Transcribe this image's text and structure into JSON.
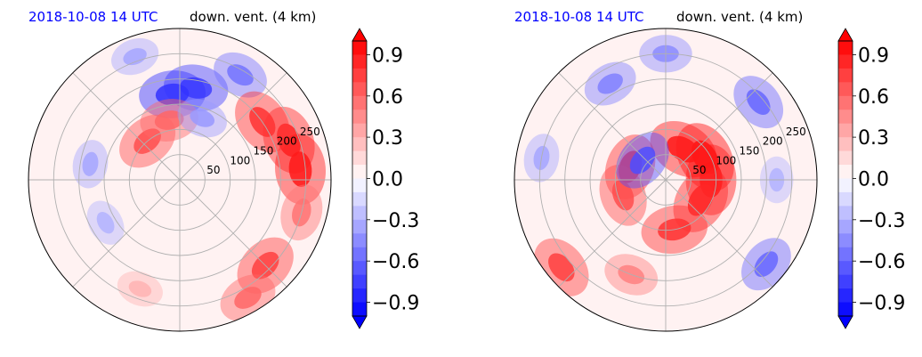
{
  "chart_data": [
    {
      "type": "heatmap",
      "projection": "polar",
      "title_left": "2018-10-08 14 UTC",
      "title_right": "down. vent. (4 km)",
      "title_left_color": "#0000ff",
      "radial_ticks": [
        "50",
        "100",
        "150",
        "200",
        "250"
      ],
      "radial_values": [
        50,
        100,
        150,
        200,
        250
      ],
      "rlim": [
        0,
        300
      ],
      "grid": true,
      "colormap": "bwr",
      "vmin": -1.0,
      "vmax": 1.0,
      "colorbar_ticks": [
        "0.9",
        "0.6",
        "0.3",
        "0.0",
        "−0.3",
        "−0.6",
        "−0.9"
      ],
      "colorbar_values": [
        0.9,
        0.6,
        0.3,
        0.0,
        -0.3,
        -0.6,
        -0.9
      ],
      "colorbar_extend": "both",
      "features": [
        {
          "theta_deg": 80,
          "r": 185,
          "value": -0.75
        },
        {
          "theta_deg": 95,
          "r": 170,
          "value": -0.8
        },
        {
          "theta_deg": 60,
          "r": 240,
          "value": -0.55
        },
        {
          "theta_deg": 110,
          "r": 260,
          "value": -0.35
        },
        {
          "theta_deg": 20,
          "r": 230,
          "value": 0.85
        },
        {
          "theta_deg": 5,
          "r": 240,
          "value": 0.9
        },
        {
          "theta_deg": 35,
          "r": 200,
          "value": 0.8
        },
        {
          "theta_deg": 130,
          "r": 100,
          "value": 0.7
        },
        {
          "theta_deg": 100,
          "r": 120,
          "value": 0.6
        },
        {
          "theta_deg": 315,
          "r": 240,
          "value": 0.75
        },
        {
          "theta_deg": 300,
          "r": 270,
          "value": 0.6
        },
        {
          "theta_deg": 345,
          "r": 250,
          "value": 0.55
        },
        {
          "theta_deg": 70,
          "r": 130,
          "value": -0.4
        },
        {
          "theta_deg": 170,
          "r": 180,
          "value": -0.35
        },
        {
          "theta_deg": 210,
          "r": 170,
          "value": -0.3
        },
        {
          "theta_deg": 250,
          "r": 230,
          "value": 0.3
        }
      ]
    },
    {
      "type": "heatmap",
      "projection": "polar",
      "title_left": "2018-10-08 14 UTC",
      "title_right": "down. vent. (4 km)",
      "title_left_color": "#0000ff",
      "radial_ticks": [
        "50",
        "100",
        "150",
        "200",
        "250"
      ],
      "radial_values": [
        50,
        100,
        150,
        200,
        250
      ],
      "rlim": [
        0,
        300
      ],
      "grid": true,
      "colormap": "bwr",
      "vmin": -1.0,
      "vmax": 1.0,
      "colorbar_ticks": [
        "0.9",
        "0.6",
        "0.3",
        "0.0",
        "−0.3",
        "−0.6",
        "−0.9"
      ],
      "colorbar_values": [
        0.9,
        0.6,
        0.3,
        0.0,
        -0.3,
        -0.6,
        -0.9
      ],
      "colorbar_extend": "both",
      "features": [
        {
          "theta_deg": 30,
          "r": 90,
          "value": 0.95
        },
        {
          "theta_deg": 0,
          "r": 90,
          "value": 0.9
        },
        {
          "theta_deg": 330,
          "r": 80,
          "value": 0.85
        },
        {
          "theta_deg": 60,
          "r": 70,
          "value": 0.9
        },
        {
          "theta_deg": 160,
          "r": 75,
          "value": 0.8
        },
        {
          "theta_deg": 200,
          "r": 90,
          "value": 0.7
        },
        {
          "theta_deg": 280,
          "r": 100,
          "value": 0.8
        },
        {
          "theta_deg": 250,
          "r": 200,
          "value": 0.5
        },
        {
          "theta_deg": 220,
          "r": 270,
          "value": 0.75
        },
        {
          "theta_deg": 120,
          "r": 220,
          "value": -0.5
        },
        {
          "theta_deg": 90,
          "r": 250,
          "value": -0.45
        },
        {
          "theta_deg": 170,
          "r": 250,
          "value": -0.35
        },
        {
          "theta_deg": 40,
          "r": 240,
          "value": -0.6
        },
        {
          "theta_deg": 320,
          "r": 260,
          "value": -0.6
        },
        {
          "theta_deg": 0,
          "r": 220,
          "value": -0.3
        },
        {
          "theta_deg": 140,
          "r": 60,
          "value": -0.7
        }
      ]
    }
  ]
}
